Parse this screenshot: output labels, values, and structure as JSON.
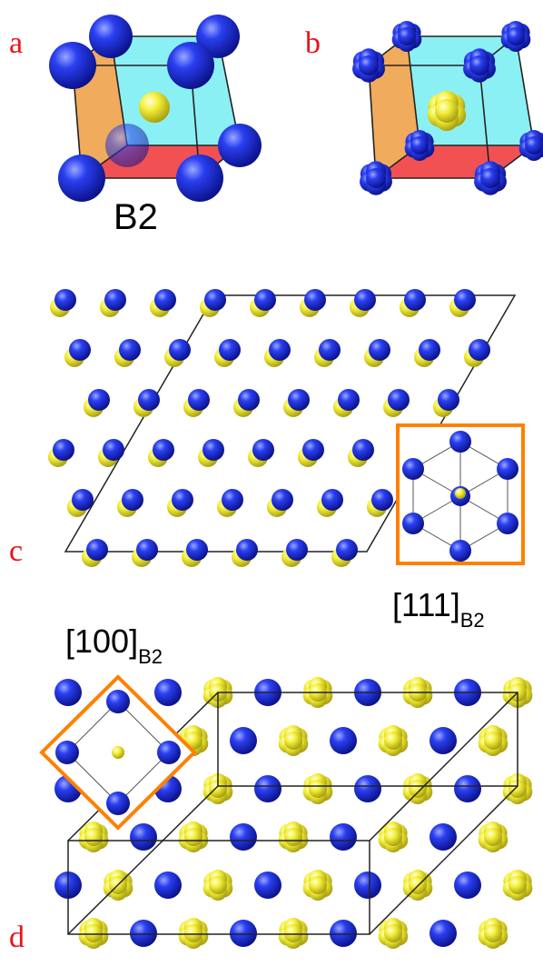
{
  "panels": {
    "a": {
      "letter": "a",
      "structure_label": "B2"
    },
    "b": {
      "letter": "b"
    },
    "c": {
      "letter": "c",
      "inset_label_main": "[111]",
      "inset_label_sub": "B2"
    },
    "d": {
      "letter": "d",
      "inset_label_main": "[100]",
      "inset_label_sub": "B2"
    }
  },
  "colors": {
    "panel_letter": "#e8141b",
    "atom_blue": "#1a2ee0",
    "atom_yellow": "#f2ee3a",
    "face_cyan": "#7eeef2",
    "face_orange": "#f0a24a",
    "face_red": "#ef3e40",
    "cell_line": "#222222",
    "inset_border": "#ff8000"
  }
}
